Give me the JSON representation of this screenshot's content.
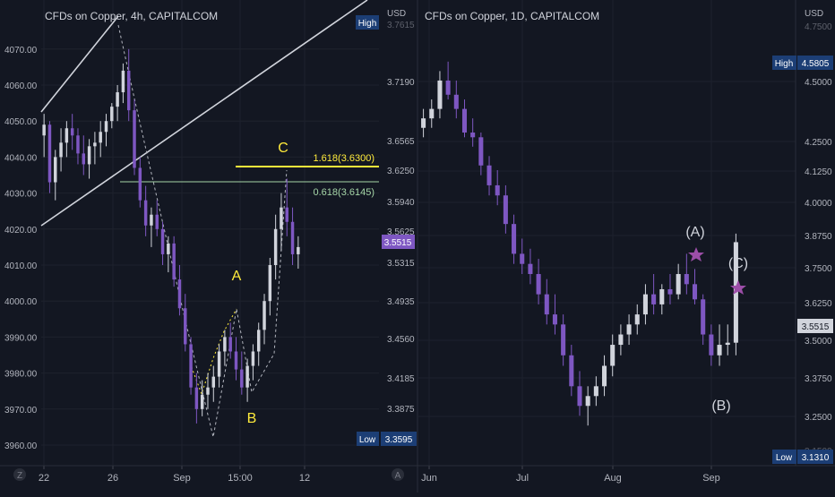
{
  "colors": {
    "bg": "#131722",
    "grid": "#1e222d",
    "text": "#b2b5be",
    "up": "#d1d4dc",
    "down": "#7e57c2",
    "yellow": "#ffeb3b",
    "green": "#a5d6a7",
    "label_bg": "#1c3e75",
    "current_bg": "#7e57c2",
    "star": "#9c4ea8"
  },
  "left": {
    "title": "CFDs on Copper, 4h, CAPITALCOM",
    "y_ticks": [
      "4070.00",
      "4060.00",
      "4050.00",
      "4040.00",
      "4030.00",
      "4020.00",
      "4010.00",
      "4000.00",
      "3990.00",
      "3980.00",
      "3970.00",
      "3960.00"
    ],
    "y_tick_values": [
      4070,
      4060,
      4050,
      4040,
      4030,
      4020,
      4010,
      4000,
      3990,
      3980,
      3970,
      3960
    ],
    "x_ticks": [
      "22",
      "26",
      "Sep",
      "15:00",
      "12"
    ],
    "corner": "Z",
    "high_label": "High",
    "high_value": "3.7615",
    "low_label": "Low",
    "low_value": "3.3595",
    "fib_1": "1.618(3.6300)",
    "fib_2": "0.618(3.6145)",
    "wave_c": "C",
    "wave_a": "A",
    "wave_b": "B"
  },
  "right": {
    "title": "CFDs on Copper, 1D, CAPITALCOM",
    "currency": "USD",
    "y_ticks": [
      "3.7190",
      "3.6565",
      "3.6250",
      "3.5940",
      "3.5625",
      "3.5315",
      "3.4935",
      "3.4560",
      "3.4185",
      "3.3875"
    ],
    "y_tick_values": [
      3.719,
      3.6565,
      3.625,
      3.594,
      3.5625,
      3.5315,
      3.4935,
      3.456,
      3.4185,
      3.3875
    ],
    "current_value": "3.5515",
    "x_ticks": [
      "Jun",
      "Jul",
      "Aug",
      "Sep"
    ],
    "corner": "A"
  },
  "far": {
    "currency": "USD",
    "y_ticks": [
      "4.5000",
      "4.2500",
      "4.1250",
      "4.0000",
      "3.8750",
      "3.7500",
      "3.6250",
      "3.5000",
      "3.3750",
      "3.2500"
    ],
    "y_tick_values": [
      4.5,
      4.25,
      4.125,
      4.0,
      3.875,
      3.75,
      3.625,
      3.5,
      3.375,
      3.25
    ],
    "high_label": "High",
    "high_value": "4.5805",
    "low_label": "Low",
    "low_value": "3.1310",
    "current_value": "3.5515",
    "cut_top": "4.7500",
    "cut_bottom": "3.1500",
    "wave_a": "(A)",
    "wave_b": "(B)",
    "wave_c": "(C)"
  },
  "chart_data": [
    {
      "type": "candlestick",
      "title": "CFDs on Copper, 4h, CAPITALCOM",
      "x_ticks": [
        "22",
        "26",
        "Sep",
        "15:00",
        "12"
      ],
      "ylim": [
        3955,
        4080
      ],
      "candles": [
        [
          4046,
          4052,
          4040,
          4049
        ],
        [
          4049,
          4050,
          4030,
          4033
        ],
        [
          4033,
          4042,
          4028,
          4040
        ],
        [
          4040,
          4048,
          4036,
          4044
        ],
        [
          4044,
          4050,
          4040,
          4048
        ],
        [
          4048,
          4052,
          4042,
          4046
        ],
        [
          4046,
          4048,
          4038,
          4041
        ],
        [
          4041,
          4046,
          4035,
          4038
        ],
        [
          4038,
          4045,
          4034,
          4043
        ],
        [
          4043,
          4047,
          4038,
          4044
        ],
        [
          4044,
          4050,
          4040,
          4047
        ],
        [
          4047,
          4052,
          4043,
          4050
        ],
        [
          4050,
          4055,
          4048,
          4054
        ],
        [
          4054,
          4060,
          4050,
          4058
        ],
        [
          4058,
          4066,
          4055,
          4064
        ],
        [
          4064,
          4070,
          4050,
          4053
        ],
        [
          4053,
          4056,
          4035,
          4037
        ],
        [
          4037,
          4040,
          4026,
          4028
        ],
        [
          4028,
          4032,
          4018,
          4021
        ],
        [
          4021,
          4026,
          4015,
          4024
        ],
        [
          4024,
          4028,
          4018,
          4020
        ],
        [
          4020,
          4022,
          4010,
          4013
        ],
        [
          4013,
          4018,
          4008,
          4016
        ],
        [
          4016,
          4018,
          4004,
          4006
        ],
        [
          4006,
          4010,
          3996,
          3998
        ],
        [
          3998,
          4002,
          3986,
          3988
        ],
        [
          3988,
          3990,
          3974,
          3976
        ],
        [
          3976,
          3980,
          3966,
          3970
        ],
        [
          3970,
          3978,
          3968,
          3974
        ],
        [
          3974,
          3980,
          3970,
          3976
        ],
        [
          3976,
          3982,
          3972,
          3979
        ],
        [
          3979,
          3988,
          3976,
          3986
        ],
        [
          3986,
          3992,
          3982,
          3990
        ],
        [
          3990,
          3994,
          3984,
          3986
        ],
        [
          3986,
          3990,
          3978,
          3981
        ],
        [
          3981,
          3986,
          3974,
          3976
        ],
        [
          3976,
          3984,
          3972,
          3982
        ],
        [
          3982,
          3988,
          3978,
          3986
        ],
        [
          3986,
          3994,
          3982,
          3992
        ],
        [
          3992,
          4002,
          3988,
          4000
        ],
        [
          4000,
          4012,
          3996,
          4010
        ],
        [
          4010,
          4024,
          4006,
          4020
        ],
        [
          4020,
          4030,
          4014,
          4026
        ],
        [
          4026,
          4034,
          4018,
          4022
        ],
        [
          4022,
          4026,
          4010,
          4013
        ],
        [
          4013,
          4018,
          4009,
          4015
        ]
      ]
    },
    {
      "type": "candlestick",
      "title": "CFDs on Copper, 1D, CAPITALCOM",
      "x_ticks": [
        "Jun",
        "Jul",
        "Aug",
        "Sep"
      ],
      "ylim": [
        3.36,
        3.77
      ],
      "current": 3.5515,
      "candles": [
        [
          3.67,
          3.69,
          3.66,
          3.68
        ],
        [
          3.68,
          3.7,
          3.67,
          3.69
        ],
        [
          3.69,
          3.73,
          3.68,
          3.72
        ],
        [
          3.72,
          3.74,
          3.7,
          3.705
        ],
        [
          3.705,
          3.72,
          3.68,
          3.69
        ],
        [
          3.69,
          3.7,
          3.66,
          3.665
        ],
        [
          3.665,
          3.68,
          3.65,
          3.66
        ],
        [
          3.66,
          3.665,
          3.62,
          3.63
        ],
        [
          3.63,
          3.64,
          3.6,
          3.61
        ],
        [
          3.61,
          3.625,
          3.59,
          3.6
        ],
        [
          3.6,
          3.61,
          3.56,
          3.57
        ],
        [
          3.57,
          3.58,
          3.53,
          3.54
        ],
        [
          3.54,
          3.555,
          3.52,
          3.53
        ],
        [
          3.53,
          3.545,
          3.51,
          3.52
        ],
        [
          3.52,
          3.535,
          3.49,
          3.5
        ],
        [
          3.5,
          3.515,
          3.47,
          3.48
        ],
        [
          3.48,
          3.5,
          3.46,
          3.47
        ],
        [
          3.47,
          3.48,
          3.43,
          3.44
        ],
        [
          3.44,
          3.45,
          3.4,
          3.41
        ],
        [
          3.41,
          3.425,
          3.38,
          3.39
        ],
        [
          3.39,
          3.41,
          3.37,
          3.4
        ],
        [
          3.4,
          3.42,
          3.39,
          3.41
        ],
        [
          3.41,
          3.44,
          3.4,
          3.43
        ],
        [
          3.43,
          3.46,
          3.42,
          3.45
        ],
        [
          3.45,
          3.47,
          3.44,
          3.46
        ],
        [
          3.46,
          3.48,
          3.45,
          3.47
        ],
        [
          3.47,
          3.49,
          3.46,
          3.48
        ],
        [
          3.48,
          3.51,
          3.47,
          3.5
        ],
        [
          3.5,
          3.52,
          3.48,
          3.49
        ],
        [
          3.49,
          3.51,
          3.48,
          3.505
        ],
        [
          3.505,
          3.52,
          3.49,
          3.5
        ],
        [
          3.5,
          3.53,
          3.495,
          3.52
        ],
        [
          3.52,
          3.54,
          3.5,
          3.51
        ],
        [
          3.51,
          3.525,
          3.49,
          3.495
        ],
        [
          3.495,
          3.5,
          3.45,
          3.46
        ],
        [
          3.46,
          3.47,
          3.43,
          3.44
        ],
        [
          3.44,
          3.47,
          3.43,
          3.45
        ],
        [
          3.45,
          3.47,
          3.44,
          3.452
        ],
        [
          3.452,
          3.56,
          3.44,
          3.5515
        ]
      ]
    }
  ]
}
